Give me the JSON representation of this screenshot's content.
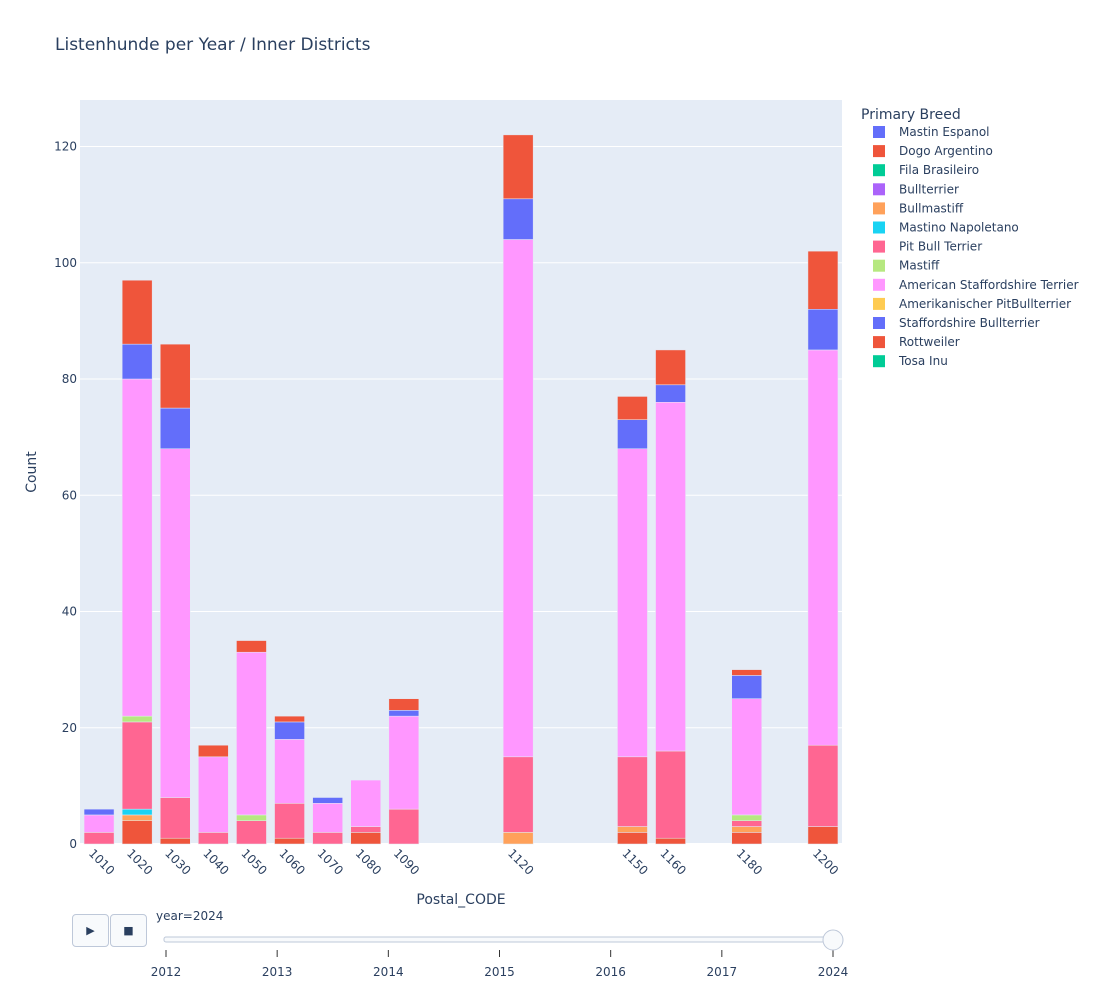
{
  "chart_data": {
    "type": "bar",
    "title": "Listenhunde per Year / Inner Districts",
    "xlabel": "Postal_CODE",
    "ylabel": "Count",
    "ylim": [
      0,
      128
    ],
    "yticks": [
      0,
      20,
      40,
      60,
      80,
      100,
      120
    ],
    "grid": true,
    "barmode": "stack",
    "legend_title": "Primary Breed",
    "legend_placement": "right",
    "categories": [
      "1010",
      "1020",
      "1030",
      "1040",
      "1050",
      "1060",
      "1070",
      "1080",
      "1090",
      "1120",
      "1150",
      "1160",
      "1180",
      "1200"
    ],
    "x_values": [
      1010,
      1020,
      1030,
      1040,
      1050,
      1060,
      1070,
      1080,
      1090,
      1120,
      1150,
      1160,
      1180,
      1200
    ],
    "xlim": [
      1005,
      1205
    ],
    "series": [
      {
        "name": "Mastin Espanol",
        "color": "#636efa",
        "values": [
          0,
          0,
          0,
          0,
          0,
          0,
          0,
          0,
          0,
          0,
          0,
          0,
          0,
          0
        ]
      },
      {
        "name": "Dogo Argentino",
        "color": "#EF553B",
        "values": [
          0,
          4,
          1,
          0,
          0,
          1,
          0,
          2,
          0,
          0,
          2,
          1,
          2,
          3
        ]
      },
      {
        "name": "Fila Brasileiro",
        "color": "#00cc96",
        "values": [
          0,
          0,
          0,
          0,
          0,
          0,
          0,
          0,
          0,
          0,
          0,
          0,
          0,
          0
        ]
      },
      {
        "name": "Bullterrier",
        "color": "#ab63fa",
        "values": [
          0,
          0,
          0,
          0,
          0,
          0,
          0,
          0,
          0,
          0,
          0,
          0,
          0,
          0
        ]
      },
      {
        "name": "Bullmastiff",
        "color": "#FFA15A",
        "values": [
          0,
          1,
          0,
          0,
          0,
          0,
          0,
          0,
          0,
          2,
          1,
          0,
          1,
          0
        ]
      },
      {
        "name": "Mastino Napoletano",
        "color": "#19d3f3",
        "values": [
          0,
          1,
          0,
          0,
          0,
          0,
          0,
          0,
          0,
          0,
          0,
          0,
          0,
          0
        ]
      },
      {
        "name": "Pit Bull Terrier",
        "color": "#FF6692",
        "values": [
          2,
          15,
          7,
          2,
          4,
          6,
          2,
          1,
          6,
          13,
          12,
          15,
          1,
          14
        ]
      },
      {
        "name": "Mastiff",
        "color": "#B6E880",
        "values": [
          0,
          1,
          0,
          0,
          1,
          0,
          0,
          0,
          0,
          0,
          0,
          0,
          1,
          0
        ]
      },
      {
        "name": "American Staffordshire Terrier",
        "color": "#FF97FF",
        "values": [
          3,
          58,
          60,
          13,
          28,
          11,
          5,
          8,
          16,
          89,
          53,
          60,
          20,
          68
        ]
      },
      {
        "name": "Amerikanischer PitBullterrier",
        "color": "#FECB52",
        "values": [
          0,
          0,
          0,
          0,
          0,
          0,
          0,
          0,
          0,
          0,
          0,
          0,
          0,
          0
        ]
      },
      {
        "name": "Staffordshire Bullterrier",
        "color": "#636efa",
        "values": [
          1,
          6,
          7,
          0,
          0,
          3,
          1,
          0,
          1,
          7,
          5,
          3,
          4,
          7
        ]
      },
      {
        "name": "Rottweiler",
        "color": "#EF553B",
        "values": [
          0,
          11,
          11,
          2,
          2,
          1,
          0,
          0,
          2,
          11,
          4,
          6,
          1,
          10
        ]
      },
      {
        "name": "Tosa Inu",
        "color": "#00cc96",
        "values": [
          0,
          0,
          0,
          0,
          0,
          0,
          0,
          0,
          0,
          0,
          0,
          0,
          0,
          0
        ]
      }
    ]
  },
  "slider": {
    "current_label": "year=2024",
    "steps": [
      "2012",
      "2013",
      "2014",
      "2015",
      "2016",
      "2017",
      "2024"
    ],
    "active": 6,
    "play_icon": "play-icon",
    "stop_icon": "stop-icon"
  }
}
